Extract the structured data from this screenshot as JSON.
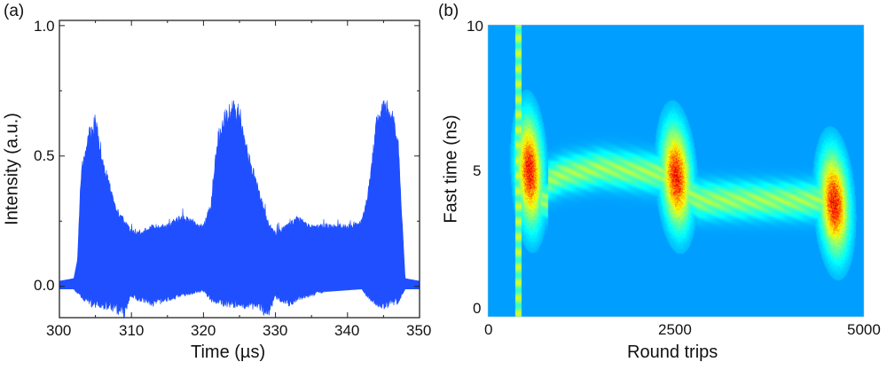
{
  "chart_data": [
    {
      "panel_label": "(a)",
      "type": "area",
      "xlabel": "Time (µs)",
      "ylabel": "Intensity (a.u.)",
      "xlim": [
        300,
        350
      ],
      "ylim": [
        -0.12,
        1.02
      ],
      "xticks": [
        "300",
        "310",
        "320",
        "330",
        "340",
        "350"
      ],
      "yticks": [
        "0.0",
        "0.5",
        "1.0"
      ],
      "color": "#1f4fff",
      "series": [
        {
          "role": "upper envelope",
          "x": [
            300,
            302,
            302.5,
            303,
            304,
            305,
            306,
            307,
            308,
            309,
            310,
            311,
            313,
            315,
            317,
            319,
            320,
            321,
            322,
            323,
            324,
            325,
            326,
            327,
            328,
            329,
            330,
            331,
            333,
            335,
            340,
            342,
            343,
            344,
            345,
            346,
            347,
            347.5,
            348,
            350
          ],
          "y": [
            0.02,
            0.03,
            0.1,
            0.45,
            0.6,
            0.66,
            0.5,
            0.4,
            0.3,
            0.26,
            0.22,
            0.21,
            0.24,
            0.24,
            0.28,
            0.25,
            0.24,
            0.32,
            0.6,
            0.68,
            0.72,
            0.7,
            0.55,
            0.45,
            0.35,
            0.25,
            0.21,
            0.23,
            0.27,
            0.24,
            0.24,
            0.26,
            0.4,
            0.65,
            0.72,
            0.71,
            0.6,
            0.3,
            0.03,
            0.02
          ]
        },
        {
          "role": "lower envelope",
          "x": [
            300,
            302,
            303,
            305,
            307,
            309,
            310,
            311,
            313,
            315,
            317,
            320,
            321,
            323,
            327,
            329,
            330,
            332,
            334,
            337,
            342,
            343,
            345,
            347,
            348,
            350
          ],
          "y": [
            -0.01,
            -0.01,
            -0.05,
            -0.09,
            -0.09,
            -0.13,
            -0.04,
            -0.06,
            -0.08,
            -0.06,
            -0.04,
            -0.02,
            -0.06,
            -0.08,
            -0.09,
            -0.12,
            -0.05,
            -0.08,
            -0.05,
            -0.02,
            -0.01,
            -0.06,
            -0.09,
            -0.07,
            -0.01,
            -0.01
          ]
        }
      ]
    },
    {
      "panel_label": "(b)",
      "type": "heatmap",
      "xlabel": "Round trips",
      "ylabel": "Fast time (ns)",
      "xlim": [
        0,
        5000
      ],
      "ylim": [
        0,
        10
      ],
      "xticks": [
        "0",
        "2500",
        "5000"
      ],
      "yticks": [
        "0",
        "5",
        "10"
      ],
      "colormap": "jet",
      "background_color": "#1f4fff",
      "vertical_stripe_round_trip": 400,
      "ridge": [
        [
          800,
          4.7
        ],
        [
          1000,
          4.9
        ],
        [
          1500,
          5.1
        ],
        [
          2000,
          5.0
        ],
        [
          2300,
          4.9
        ],
        [
          2800,
          4.0
        ],
        [
          3200,
          4.0
        ],
        [
          4000,
          4.0
        ],
        [
          4500,
          4.0
        ]
      ],
      "bursts": [
        {
          "round_trip": 550,
          "fast_time": 5.0
        },
        {
          "round_trip": 2500,
          "fast_time": 4.8
        },
        {
          "round_trip": 4600,
          "fast_time": 3.9
        }
      ]
    }
  ]
}
